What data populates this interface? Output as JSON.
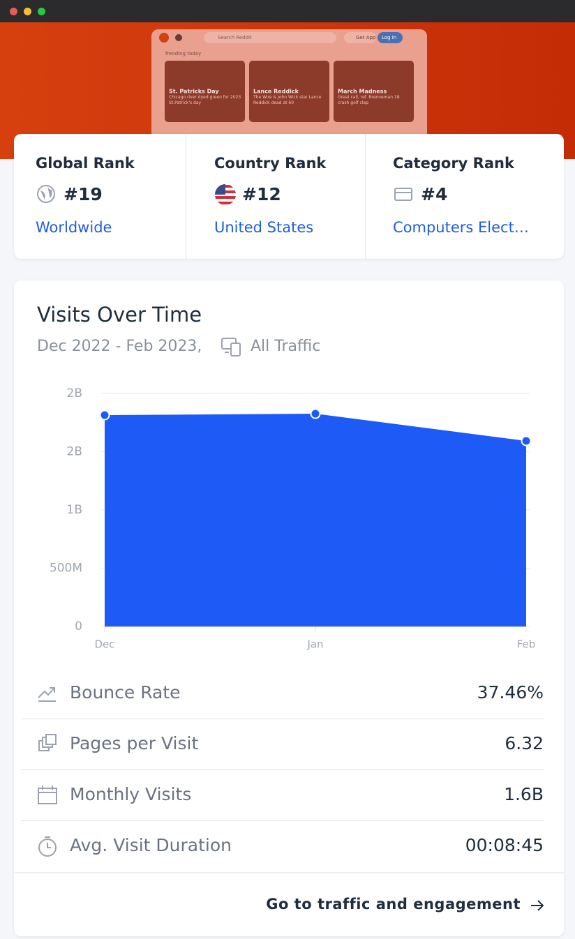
{
  "preview": {
    "search": "Search Reddit",
    "get_app": "Get App",
    "log_in": "Log In",
    "trending": "Trending today",
    "cards": [
      {
        "title": "St. Patricks Day",
        "text": "Chicago river dyed green for 2023 St.Patrick's day"
      },
      {
        "title": "Lance Reddick",
        "text": "The Wire & John Wick star Lance Reddick dead at 60"
      },
      {
        "title": "March Madness",
        "text": "Great call, ref. Brenneman 18 crash golf clap"
      }
    ]
  },
  "ranks": [
    {
      "label": "Global Rank",
      "value": "#19",
      "scope": "Worldwide"
    },
    {
      "label": "Country Rank",
      "value": "#12",
      "scope": "United States"
    },
    {
      "label": "Category Rank",
      "value": "#4",
      "scope": "Computers Elect…"
    }
  ],
  "chart_data": {
    "type": "area",
    "title": "Visits Over Time",
    "subtitle": "Dec 2022 - Feb 2023,",
    "traffic": "All Traffic",
    "categories": [
      "Dec",
      "Jan",
      "Feb"
    ],
    "values": [
      1814000000,
      1826000000,
      1593000000
    ],
    "color": "#1e5bf6",
    "ylim": [
      0,
      2000000000
    ],
    "yticks": [
      0,
      {
        "value": 500000000,
        "label": "500M"
      },
      {
        "value": 1000000000,
        "label": "1B"
      },
      {
        "value": 1500000000,
        "label": "2B"
      },
      {
        "value": 2000000000,
        "label": "2B"
      }
    ],
    "grid": true
  },
  "metrics": [
    {
      "label": "Bounce Rate",
      "value": "37.46%"
    },
    {
      "label": "Pages per Visit",
      "value": "6.32"
    },
    {
      "label": "Monthly Visits",
      "value": "1.6B"
    },
    {
      "label": "Avg. Visit Duration",
      "value": "00:08:45"
    }
  ],
  "footer_link": "Go to traffic and engagement"
}
